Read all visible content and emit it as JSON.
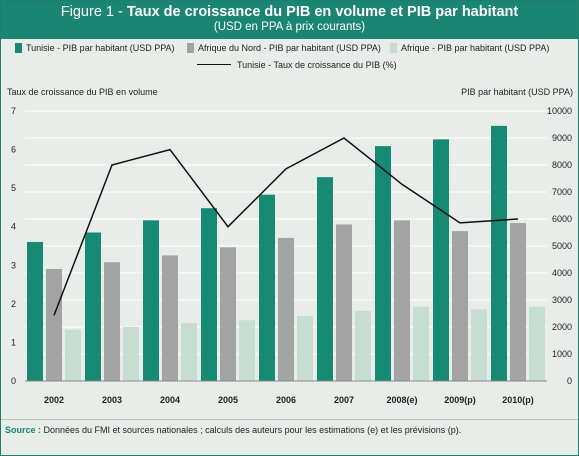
{
  "header": {
    "figure_label": "Figure 1 - ",
    "title": "Taux de croissance du PIB en volume et PIB par habitant",
    "subtitle": "(USD en PPA à prix courants)"
  },
  "legend": [
    {
      "label": "Tunisie - PIB par habitant (USD PPA)",
      "color": "#168a72",
      "kind": "bar"
    },
    {
      "label": "Afrique du Nord - PIB par habitant (USD PPA)",
      "color": "#a3a3a3",
      "kind": "bar"
    },
    {
      "label": "Afrique - PIB par habitant (USD PPA)",
      "color": "#c6ddd2",
      "kind": "bar"
    },
    {
      "label": "Tunisie - Taux de croissance du PIB (%)",
      "color": "#111111",
      "kind": "line"
    }
  ],
  "chart_data": {
    "type": "bar",
    "categories": [
      "2002",
      "2003",
      "2004",
      "2005",
      "2006",
      "2007",
      "2008(e)",
      "2009(p)",
      "2010(p)"
    ],
    "ylabel": "Taux de croissance du PIB en volume",
    "ylabel_right": "PIB par habitant (USD PPA)",
    "ylim_left": [
      0,
      7
    ],
    "yticks_left": [
      "0",
      "1",
      "2",
      "3",
      "4",
      "5",
      "6",
      "7"
    ],
    "ylim_right": [
      0,
      10000
    ],
    "yticks_right": [
      "0",
      "1000",
      "2000",
      "3000",
      "4000",
      "5000",
      "6000",
      "7000",
      "8000",
      "9000",
      "10000"
    ],
    "series": [
      {
        "name": "Tunisie - PIB par habitant (USD PPA)",
        "axis": "right",
        "kind": "bar",
        "color": "#168a72",
        "values": [
          5150,
          5500,
          5950,
          6400,
          6900,
          7550,
          8700,
          8950,
          9450
        ]
      },
      {
        "name": "Afrique du Nord - PIB par habitant (USD PPA)",
        "axis": "right",
        "kind": "bar",
        "color": "#a3a3a3",
        "values": [
          4150,
          4400,
          4650,
          4950,
          5300,
          5800,
          5950,
          5550,
          5850
        ]
      },
      {
        "name": "Afrique - PIB par habitant (USD PPA)",
        "axis": "right",
        "kind": "bar",
        "color": "#c6ddd2",
        "values": [
          1900,
          2000,
          2150,
          2250,
          2400,
          2600,
          2750,
          2650,
          2750
        ]
      },
      {
        "name": "Tunisie - Taux de croissance du PIB (%)",
        "axis": "left",
        "kind": "line",
        "color": "#111111",
        "values": [
          1.7,
          5.6,
          6.0,
          4.0,
          5.5,
          6.3,
          5.1,
          4.1,
          4.2
        ]
      }
    ],
    "grid": true,
    "legend_position": "top"
  },
  "source": {
    "label": "Source :",
    "text": " Données du FMI et sources nationales ; calculs des auteurs pour les estimations (e) et les prévisions (p)."
  }
}
